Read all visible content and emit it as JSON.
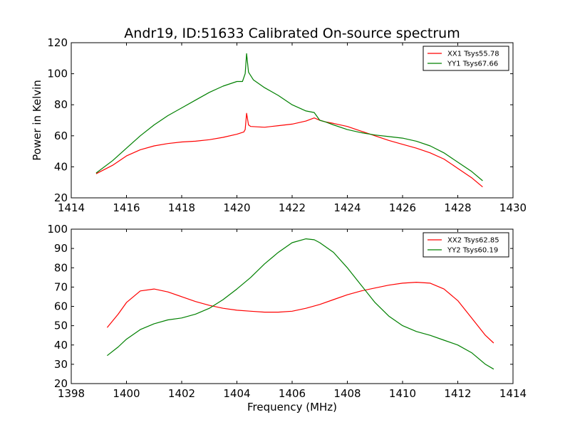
{
  "figure": {
    "title": "Andr19, ID:51633 Calibrated On-source spectrum",
    "xlabel": "Frequency (MHz)",
    "ylabel": "Power in Kelvin"
  },
  "chart_data": [
    {
      "type": "line",
      "title": "Andr19, ID:51633 Calibrated On-source spectrum",
      "xlabel": "",
      "ylabel": "Power in Kelvin",
      "xlim": [
        1414,
        1430
      ],
      "ylim": [
        20,
        120
      ],
      "xticks": [
        1414,
        1416,
        1418,
        1420,
        1422,
        1424,
        1426,
        1428,
        1430
      ],
      "yticks": [
        20,
        40,
        60,
        80,
        100,
        120
      ],
      "legend_position": "top-right",
      "grid": false,
      "series": [
        {
          "name": "XX1 Tsys55.78",
          "color": "#ff0000",
          "points": [
            [
              1414.9,
              35.5
            ],
            [
              1415.5,
              41
            ],
            [
              1416,
              47
            ],
            [
              1416.5,
              51
            ],
            [
              1417,
              53.5
            ],
            [
              1417.5,
              55
            ],
            [
              1418,
              56
            ],
            [
              1418.5,
              56.5
            ],
            [
              1419,
              57.5
            ],
            [
              1419.5,
              59
            ],
            [
              1420,
              61
            ],
            [
              1420.25,
              62.5
            ],
            [
              1420.3,
              64
            ],
            [
              1420.35,
              74.5
            ],
            [
              1420.42,
              67
            ],
            [
              1420.5,
              66
            ],
            [
              1421,
              65.5
            ],
            [
              1421.5,
              66.5
            ],
            [
              1422,
              67.5
            ],
            [
              1422.5,
              69.5
            ],
            [
              1422.8,
              71.5
            ],
            [
              1423,
              70
            ],
            [
              1423.2,
              69
            ],
            [
              1423.5,
              68
            ],
            [
              1424,
              66
            ],
            [
              1424.5,
              63
            ],
            [
              1425,
              60
            ],
            [
              1425.5,
              57
            ],
            [
              1426,
              54.5
            ],
            [
              1426.5,
              52
            ],
            [
              1427,
              49
            ],
            [
              1427.5,
              45
            ],
            [
              1428,
              39
            ],
            [
              1428.5,
              33
            ],
            [
              1428.9,
              27
            ]
          ]
        },
        {
          "name": "YY1 Tsys67.66",
          "color": "#008000",
          "points": [
            [
              1414.9,
              36
            ],
            [
              1415.5,
              44
            ],
            [
              1416,
              52
            ],
            [
              1416.5,
              60
            ],
            [
              1417,
              67
            ],
            [
              1417.5,
              73
            ],
            [
              1418,
              78
            ],
            [
              1418.5,
              83
            ],
            [
              1419,
              88
            ],
            [
              1419.5,
              92
            ],
            [
              1420,
              95
            ],
            [
              1420.2,
              95
            ],
            [
              1420.3,
              100
            ],
            [
              1420.35,
              113
            ],
            [
              1420.42,
              101
            ],
            [
              1420.6,
              96
            ],
            [
              1421,
              91
            ],
            [
              1421.5,
              86
            ],
            [
              1422,
              80
            ],
            [
              1422.5,
              76
            ],
            [
              1422.8,
              75
            ],
            [
              1423,
              70
            ],
            [
              1423.2,
              69
            ],
            [
              1423.5,
              67
            ],
            [
              1424,
              64
            ],
            [
              1424.5,
              62
            ],
            [
              1425,
              60.5
            ],
            [
              1425.5,
              59.5
            ],
            [
              1426,
              58.5
            ],
            [
              1426.5,
              56.5
            ],
            [
              1427,
              53.5
            ],
            [
              1427.5,
              49
            ],
            [
              1428,
              43
            ],
            [
              1428.5,
              37
            ],
            [
              1428.9,
              31
            ]
          ]
        }
      ]
    },
    {
      "type": "line",
      "title": "",
      "xlabel": "Frequency (MHz)",
      "ylabel": "",
      "xlim": [
        1398,
        1414
      ],
      "ylim": [
        20,
        100
      ],
      "xticks": [
        1398,
        1400,
        1402,
        1404,
        1406,
        1408,
        1410,
        1412,
        1414
      ],
      "yticks": [
        20,
        30,
        40,
        50,
        60,
        70,
        80,
        90,
        100
      ],
      "legend_position": "top-right",
      "grid": false,
      "series": [
        {
          "name": "XX2 Tsys62.85",
          "color": "#ff0000",
          "points": [
            [
              1399.3,
              49
            ],
            [
              1399.7,
              56
            ],
            [
              1400,
              62
            ],
            [
              1400.5,
              68
            ],
            [
              1401,
              69
            ],
            [
              1401.5,
              67.5
            ],
            [
              1402,
              65
            ],
            [
              1402.5,
              62.5
            ],
            [
              1403,
              60.5
            ],
            [
              1403.5,
              59
            ],
            [
              1404,
              58
            ],
            [
              1404.5,
              57.5
            ],
            [
              1405,
              57
            ],
            [
              1405.5,
              57
            ],
            [
              1406,
              57.5
            ],
            [
              1406.5,
              59
            ],
            [
              1407,
              61
            ],
            [
              1407.5,
              63.5
            ],
            [
              1408,
              66
            ],
            [
              1408.5,
              68
            ],
            [
              1409,
              69.5
            ],
            [
              1409.5,
              71
            ],
            [
              1410,
              72
            ],
            [
              1410.5,
              72.5
            ],
            [
              1411,
              72
            ],
            [
              1411.5,
              69
            ],
            [
              1412,
              63
            ],
            [
              1412.5,
              54
            ],
            [
              1413,
              45
            ],
            [
              1413.3,
              41
            ]
          ]
        },
        {
          "name": "YY2 Tsys60.19",
          "color": "#008000",
          "points": [
            [
              1399.3,
              34.5
            ],
            [
              1399.7,
              39
            ],
            [
              1400,
              43
            ],
            [
              1400.5,
              48
            ],
            [
              1401,
              51
            ],
            [
              1401.5,
              53
            ],
            [
              1402,
              54
            ],
            [
              1402.5,
              56
            ],
            [
              1403,
              59
            ],
            [
              1403.5,
              63.5
            ],
            [
              1404,
              69
            ],
            [
              1404.5,
              75
            ],
            [
              1405,
              82
            ],
            [
              1405.5,
              88
            ],
            [
              1406,
              93
            ],
            [
              1406.5,
              95
            ],
            [
              1406.8,
              94.5
            ],
            [
              1407,
              93
            ],
            [
              1407.5,
              88
            ],
            [
              1408,
              80
            ],
            [
              1408.5,
              71
            ],
            [
              1409,
              62
            ],
            [
              1409.5,
              55
            ],
            [
              1410,
              50
            ],
            [
              1410.5,
              47
            ],
            [
              1411,
              45
            ],
            [
              1411.5,
              42.5
            ],
            [
              1412,
              40
            ],
            [
              1412.5,
              36
            ],
            [
              1413,
              30
            ],
            [
              1413.3,
              27.5
            ]
          ]
        }
      ]
    }
  ]
}
